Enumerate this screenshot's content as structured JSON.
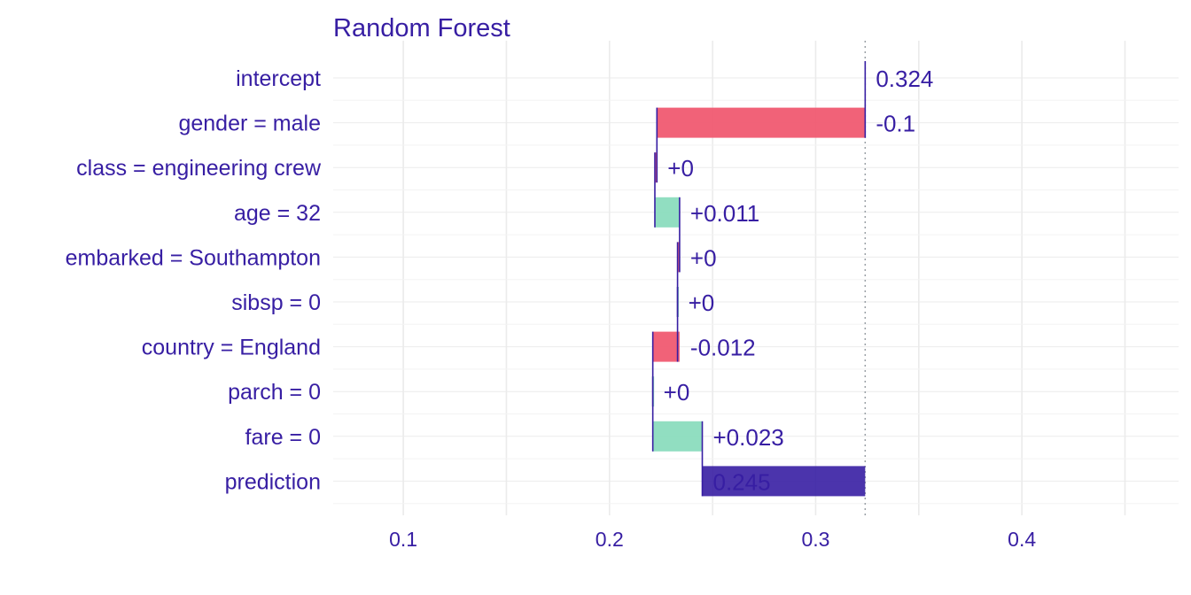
{
  "chart_data": {
    "type": "bar",
    "subtype": "waterfall (break-down)",
    "title": "Random Forest",
    "xlabel": "",
    "ylabel": "",
    "xlim": [
      0.066,
      0.476
    ],
    "x_ticks": [
      "0.1",
      "0.2",
      "0.3",
      "0.4"
    ],
    "x_tick_values": [
      0.1,
      0.2,
      0.3,
      0.4
    ],
    "baseline": 0.324,
    "grid": true,
    "legend": "none",
    "colors": {
      "text": "#371ea3",
      "negative": "#f05a71",
      "positive": "#8bdcbe",
      "prediction": "#371ea3",
      "connector": "#371ea3",
      "grid": "#ebebeb",
      "baseline_line": "#9aa0a6"
    },
    "rows": [
      {
        "variable": "intercept",
        "start": 0.324,
        "end": 0.324,
        "kind": "intercept",
        "label": "0.324"
      },
      {
        "variable": "gender = male",
        "start": 0.324,
        "end": 0.223,
        "kind": "negative",
        "label": "-0.1"
      },
      {
        "variable": "class = engineering crew",
        "start": 0.223,
        "end": 0.222,
        "kind": "negative",
        "label": "+0"
      },
      {
        "variable": "age = 32",
        "start": 0.222,
        "end": 0.234,
        "kind": "positive",
        "label": "+0.011"
      },
      {
        "variable": "embarked = Southampton",
        "start": 0.234,
        "end": 0.233,
        "kind": "negative",
        "label": "+0"
      },
      {
        "variable": "sibsp = 0",
        "start": 0.233,
        "end": 0.233,
        "kind": "positive",
        "label": "+0"
      },
      {
        "variable": "country = England",
        "start": 0.234,
        "end": 0.221,
        "kind": "negative",
        "label": "-0.012"
      },
      {
        "variable": "parch = 0",
        "start": 0.221,
        "end": 0.221,
        "kind": "positive",
        "label": "+0"
      },
      {
        "variable": "fare = 0",
        "start": 0.221,
        "end": 0.245,
        "kind": "positive",
        "label": "+0.023"
      },
      {
        "variable": "prediction",
        "start": 0.324,
        "end": 0.245,
        "kind": "prediction",
        "label": "0.245"
      }
    ]
  }
}
